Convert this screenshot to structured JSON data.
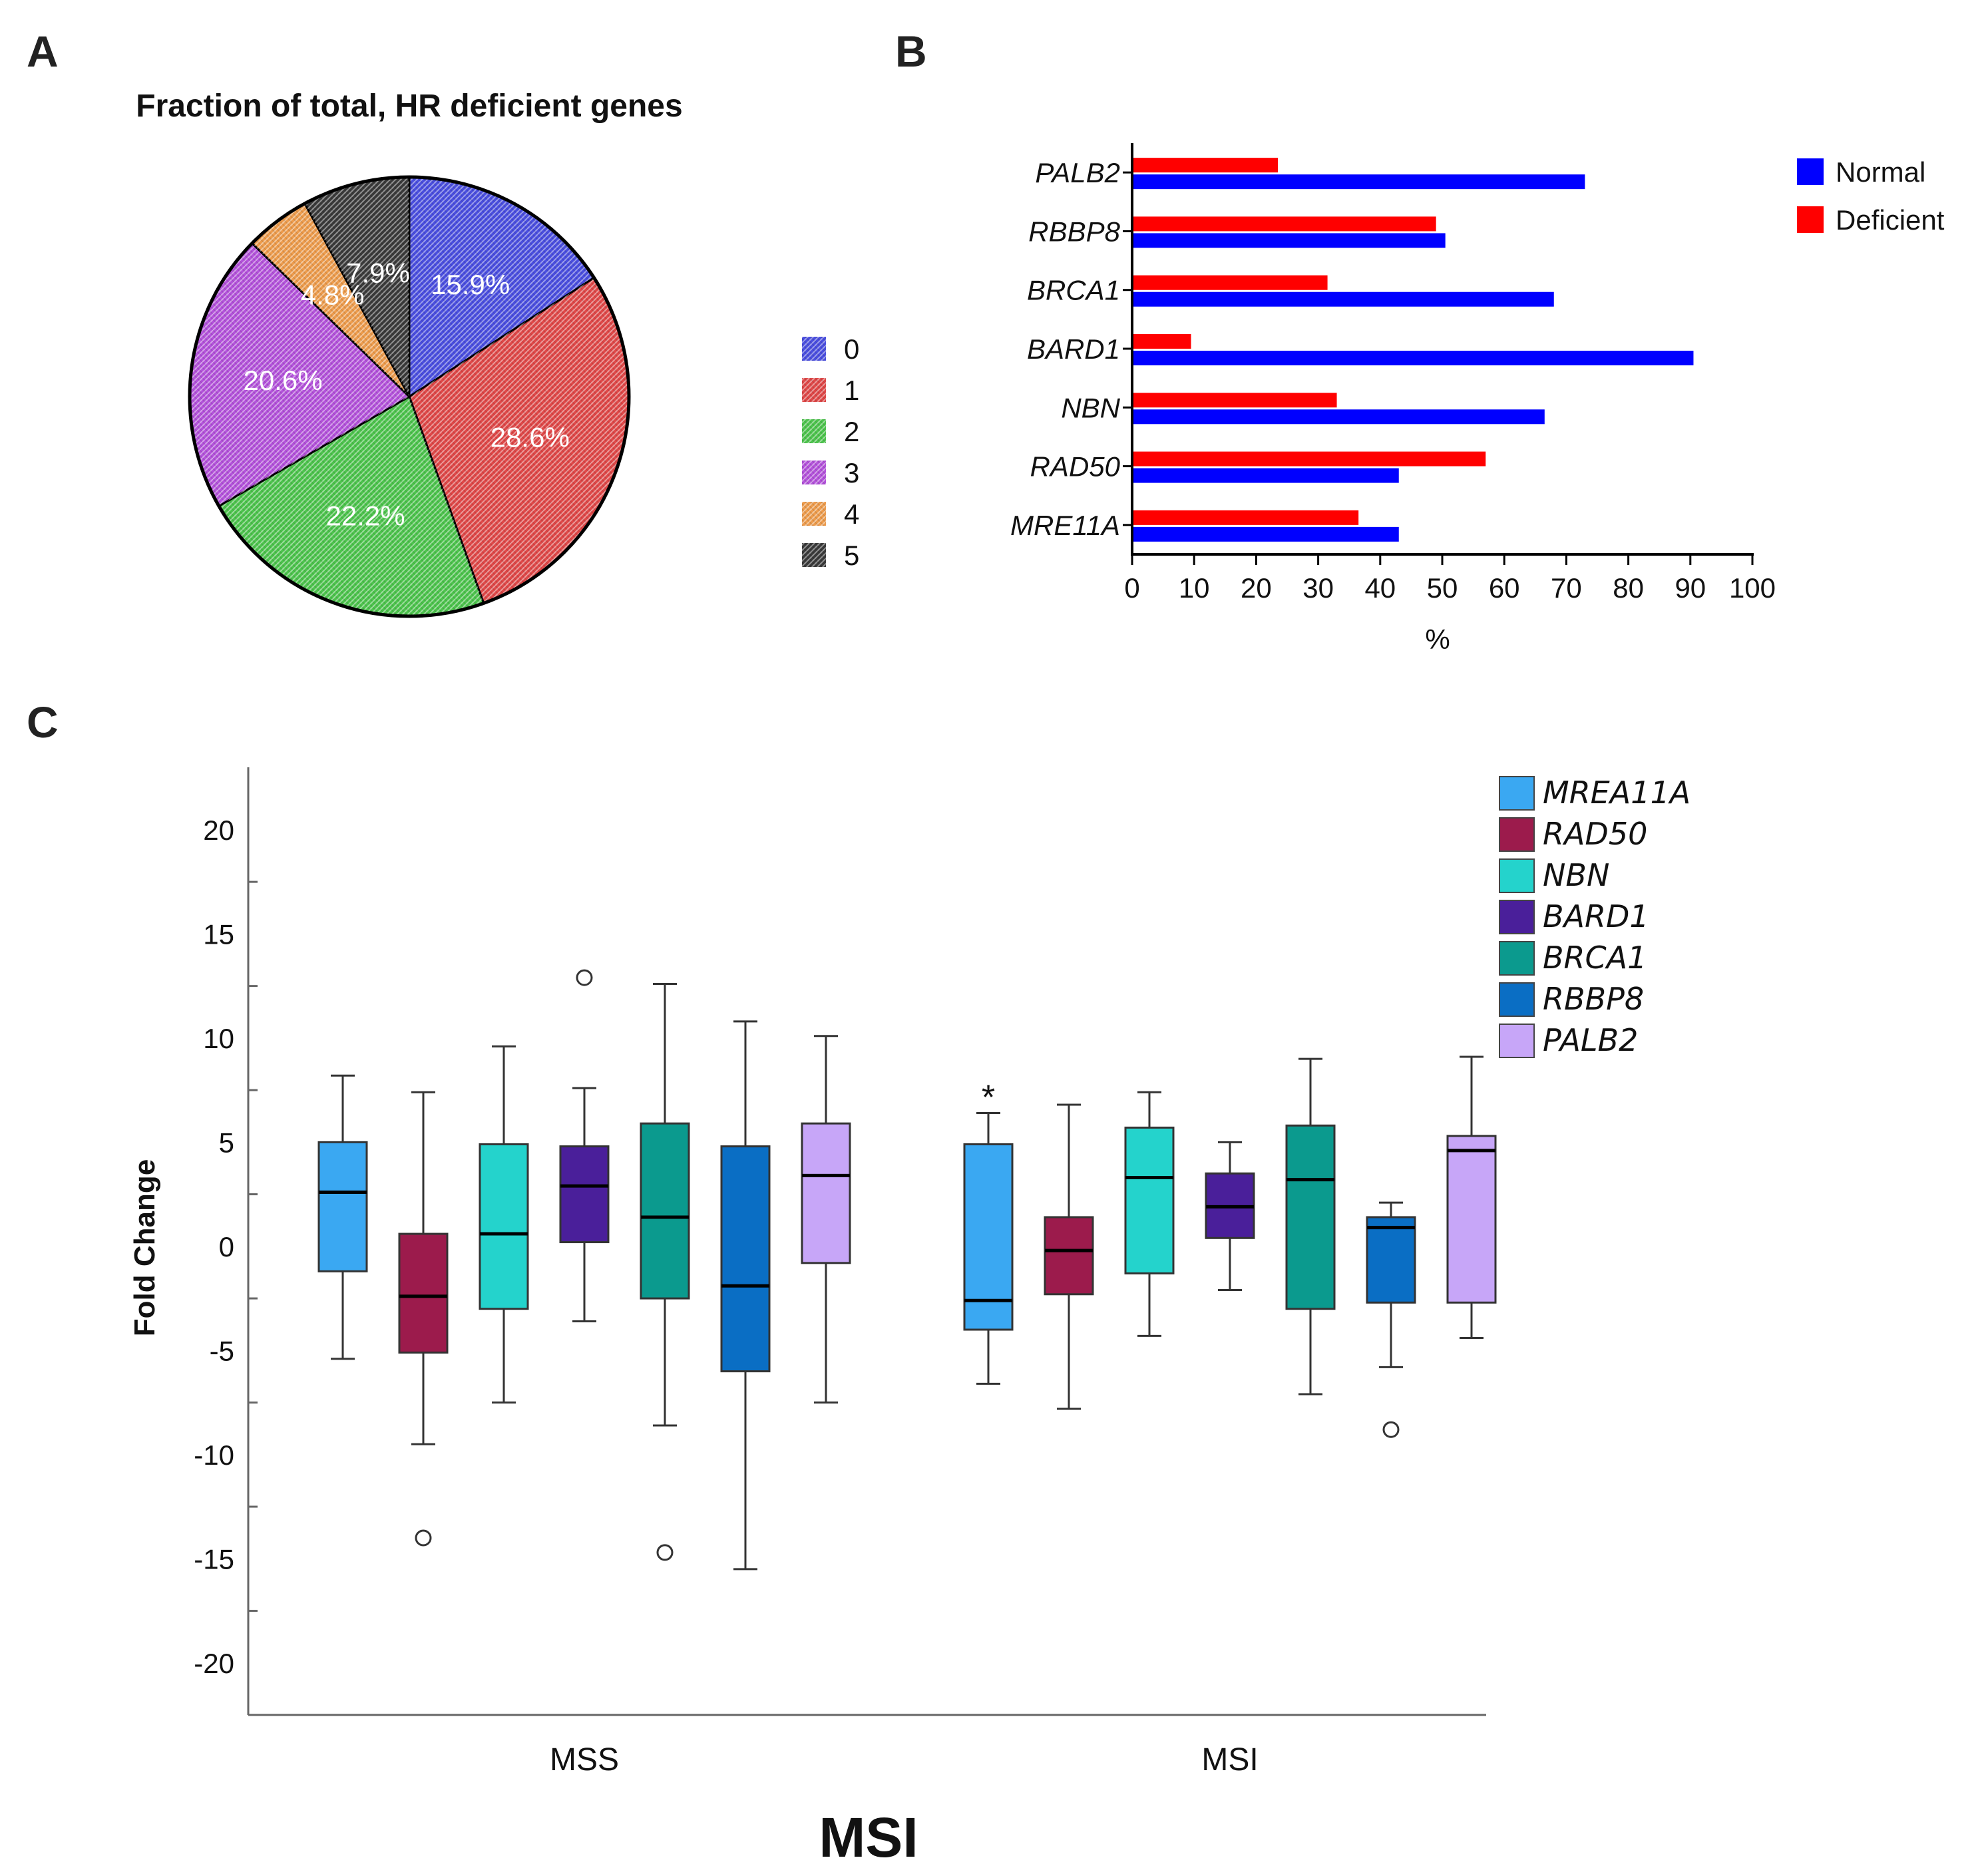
{
  "panels": {
    "a": "A",
    "b": "B",
    "c": "C"
  },
  "chart_data": [
    {
      "type": "pie",
      "panel": "A",
      "title": "Fraction of total, HR deficient genes",
      "slices": [
        {
          "label": "0",
          "value": 15.9,
          "text": "15.9%",
          "color": "#4a4ee0"
        },
        {
          "label": "1",
          "value": 28.6,
          "text": "28.6%",
          "color": "#e04848"
        },
        {
          "label": "2",
          "value": 22.2,
          "text": "22.2%",
          "color": "#4cc44c"
        },
        {
          "label": "3",
          "value": 20.6,
          "text": "20.6%",
          "color": "#b452dc"
        },
        {
          "label": "4",
          "value": 4.8,
          "text": "4.8%",
          "color": "#ee9c4c"
        },
        {
          "label": "5",
          "value": 7.9,
          "text": "7.9%",
          "color": "#3a3a3a"
        }
      ],
      "legend_placement": "right"
    },
    {
      "type": "bar",
      "panel": "B",
      "orientation": "horizontal",
      "categories": [
        "PALB2",
        "RBBP8",
        "BRCA1",
        "BARD1",
        "NBN",
        "RAD50",
        "MRE11A"
      ],
      "series": [
        {
          "name": "Deficient",
          "color": "#ff0000",
          "values": [
            23.5,
            49,
            31.5,
            9.5,
            33,
            57,
            36.5
          ]
        },
        {
          "name": "Normal",
          "color": "#0000ff",
          "values": [
            73,
            50.5,
            68,
            90.5,
            66.5,
            43,
            43
          ]
        }
      ],
      "xlabel": "%",
      "xlim": [
        0,
        100
      ],
      "xticks": [
        "0",
        "10",
        "20",
        "30",
        "40",
        "50",
        "60",
        "70",
        "80",
        "90",
        "100"
      ],
      "legend": [
        "Normal",
        "Deficient"
      ],
      "legend_placement": "top-right"
    },
    {
      "type": "box",
      "panel": "C",
      "xlabel": "MSI",
      "ylabel": "Fold Change",
      "ylim": [
        -22.5,
        23
      ],
      "yticks": [
        "20",
        "15",
        "10",
        "5",
        "0",
        "-5",
        "-10",
        "-15",
        "-20"
      ],
      "groups": [
        "MSS",
        "MSI"
      ],
      "legend": [
        {
          "name": "MREA11A",
          "color": "#3aa8f2"
        },
        {
          "name": "RAD50",
          "color": "#9c1b4c"
        },
        {
          "name": "NBN",
          "color": "#24d3cc"
        },
        {
          "name": "BARD1",
          "color": "#4a1f9a"
        },
        {
          "name": "BRCA1",
          "color": "#0b9a8e"
        },
        {
          "name": "RBBP8",
          "color": "#0a6ec4"
        },
        {
          "name": "PALB2",
          "color": "#c7a6f8"
        }
      ],
      "boxes": [
        {
          "group": "MSS",
          "gene": "MREA11A",
          "whisker_low": -5.4,
          "q1": -1.2,
          "median": 2.6,
          "q3": 5,
          "whisker_high": 8.2,
          "outliers": []
        },
        {
          "group": "MSS",
          "gene": "RAD50",
          "whisker_low": -9.5,
          "q1": -5.1,
          "median": -2.4,
          "q3": 0.6,
          "whisker_high": 7.4,
          "outliers": [
            -14
          ]
        },
        {
          "group": "MSS",
          "gene": "NBN",
          "whisker_low": -7.5,
          "q1": -3,
          "median": 0.6,
          "q3": 4.9,
          "whisker_high": 9.6,
          "outliers": []
        },
        {
          "group": "MSS",
          "gene": "BARD1",
          "whisker_low": -3.6,
          "q1": 0.2,
          "median": 2.9,
          "q3": 4.8,
          "whisker_high": 7.6,
          "outliers": [
            12.9
          ]
        },
        {
          "group": "MSS",
          "gene": "BRCA1",
          "whisker_low": -8.6,
          "q1": -2.5,
          "median": 1.4,
          "q3": 5.9,
          "whisker_high": 12.6,
          "outliers": [
            -14.7
          ]
        },
        {
          "group": "MSS",
          "gene": "RBBP8",
          "whisker_low": -15.5,
          "q1": -6,
          "median": -1.9,
          "q3": 4.8,
          "whisker_high": 10.8,
          "outliers": []
        },
        {
          "group": "MSS",
          "gene": "PALB2",
          "whisker_low": -7.5,
          "q1": -0.8,
          "median": 3.4,
          "q3": 5.9,
          "whisker_high": 10.1,
          "outliers": []
        },
        {
          "group": "MSI",
          "gene": "MREA11A",
          "whisker_low": -6.6,
          "q1": -4,
          "median": -2.6,
          "q3": 4.9,
          "whisker_high": 6.4,
          "outliers": [],
          "annotation": "*"
        },
        {
          "group": "MSI",
          "gene": "RAD50",
          "whisker_low": -7.8,
          "q1": -2.3,
          "median": -0.2,
          "q3": 1.4,
          "whisker_high": 6.8,
          "outliers": []
        },
        {
          "group": "MSI",
          "gene": "NBN",
          "whisker_low": -4.3,
          "q1": -1.3,
          "median": 3.3,
          "q3": 5.7,
          "whisker_high": 7.4,
          "outliers": []
        },
        {
          "group": "MSI",
          "gene": "BARD1",
          "whisker_low": -2.1,
          "q1": 0.4,
          "median": 1.9,
          "q3": 3.5,
          "whisker_high": 5,
          "outliers": []
        },
        {
          "group": "MSI",
          "gene": "BRCA1",
          "whisker_low": -7.1,
          "q1": -3,
          "median": 3.2,
          "q3": 5.8,
          "whisker_high": 9,
          "outliers": []
        },
        {
          "group": "MSI",
          "gene": "RBBP8",
          "whisker_low": -5.8,
          "q1": -2.7,
          "median": 0.9,
          "q3": 1.4,
          "whisker_high": 2.1,
          "outliers": [
            -8.8
          ]
        },
        {
          "group": "MSI",
          "gene": "PALB2",
          "whisker_low": -4.4,
          "q1": -2.7,
          "median": 4.6,
          "q3": 5.3,
          "whisker_high": 9.1,
          "outliers": []
        }
      ]
    }
  ]
}
